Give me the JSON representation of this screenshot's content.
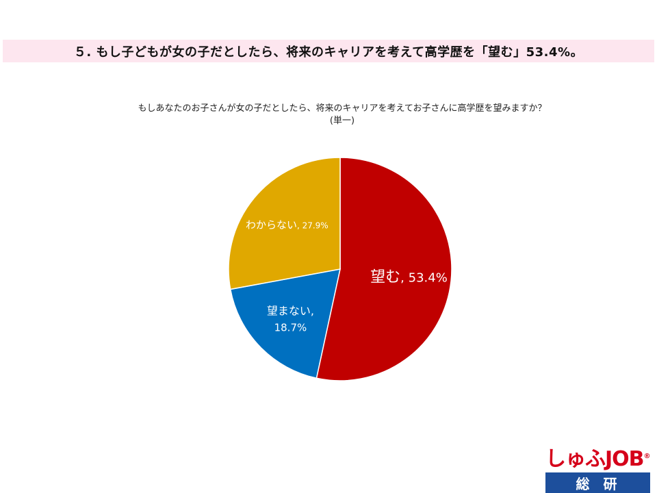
{
  "headline": "５. もし子どもが女の子だとしたら、将来のキャリアを考えて高学歴を「望む」53.4%。",
  "question": {
    "line1": "もしあなたのお子さんが女の子だとしたら、将来のキャリアを考えてお子さんに高学歴を望みますか？",
    "line2": "(単一)"
  },
  "chart_data": {
    "type": "pie",
    "slices": [
      {
        "label": "望む",
        "value": 53.4,
        "display": "53.4%",
        "color": "#c00000"
      },
      {
        "label": "望まない",
        "value": 18.7,
        "display": "18.7%",
        "color": "#0070c0"
      },
      {
        "label": "わからない",
        "value": 27.9,
        "display": "27.9%",
        "color": "#e0a800"
      }
    ],
    "start": "12 o'clock",
    "direction": "clockwise"
  },
  "logo": {
    "top": "しゅふJOB",
    "mark": "®",
    "bottom": "総研"
  },
  "colors": {
    "headline_bg": "#fde6ef",
    "logo_red": "#d5001a",
    "logo_blue": "#1d4f9c"
  }
}
